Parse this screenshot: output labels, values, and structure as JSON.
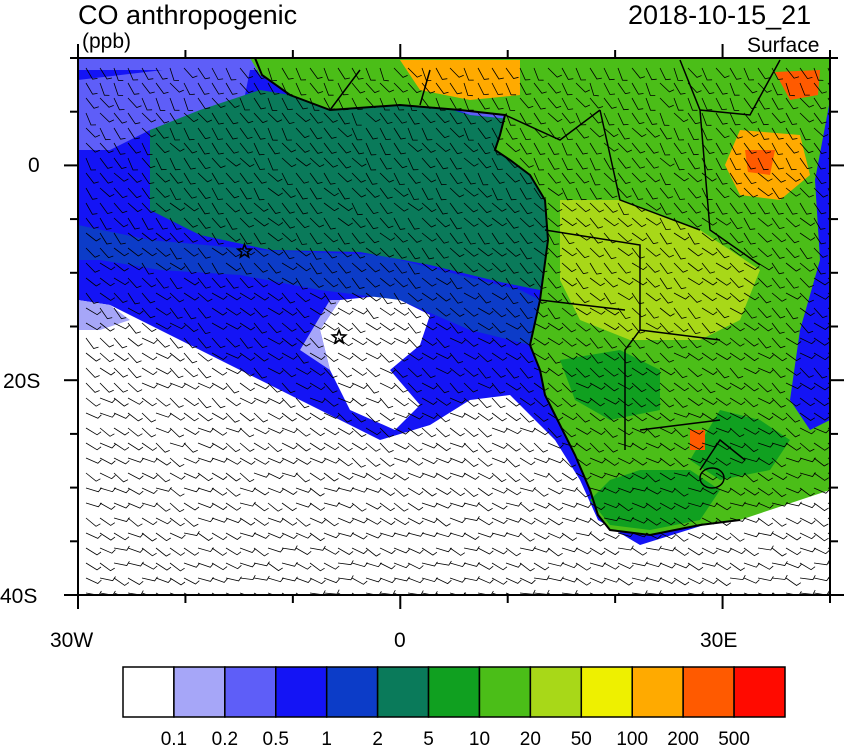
{
  "title": "CO anthropogenic",
  "units": "(ppb)",
  "datetime": "2018-10-15_21",
  "level": "Surface",
  "map": {
    "lon_range": [
      -30,
      40
    ],
    "lat_range": [
      -40,
      10
    ],
    "lon_ticks": [
      "30W",
      "0",
      "30E"
    ],
    "lat_ticks": [
      "0",
      "20S",
      "40S"
    ],
    "markers": [
      {
        "symbol": "star",
        "lon": -14.5,
        "lat": -8.0
      },
      {
        "symbol": "star",
        "lon": -5.7,
        "lat": -16.0
      }
    ],
    "wind_barbs": true
  },
  "colorbar": {
    "labels": [
      "0.1",
      "0.2",
      "0.5",
      "1",
      "2",
      "5",
      "10",
      "20",
      "50",
      "100",
      "200",
      "500"
    ],
    "colors": [
      "#ffffff",
      "#a6a6f8",
      "#5e5ef8",
      "#1414f5",
      "#0c3cc8",
      "#0a7a5a",
      "#10a020",
      "#4bbe18",
      "#a8d818",
      "#eef000",
      "#ffaa00",
      "#ff5a00",
      "#ff0a00"
    ]
  }
}
